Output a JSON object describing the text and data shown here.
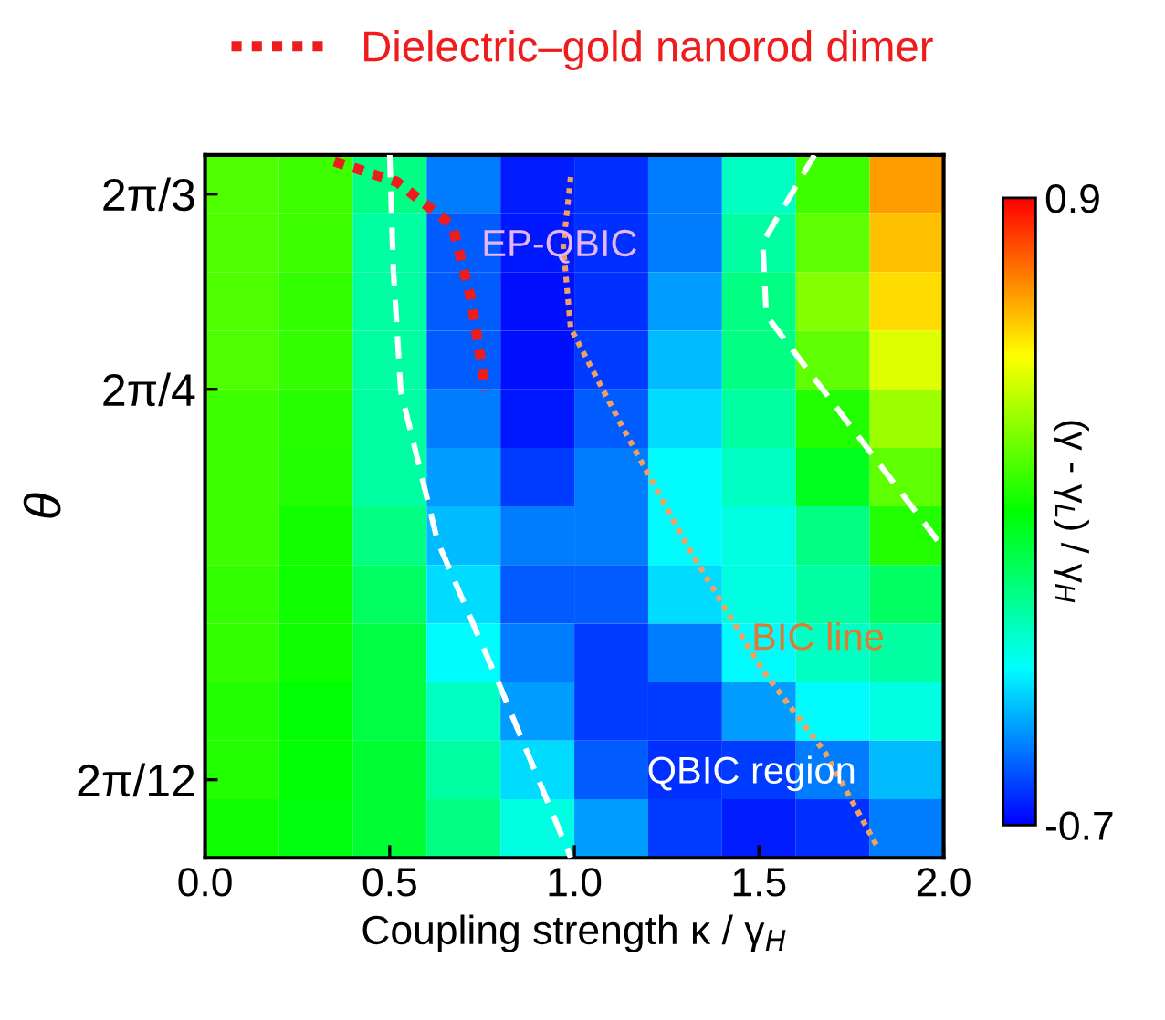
{
  "chart_data": {
    "type": "heatmap",
    "xlabel": "Coupling strength κ / γ$_{H}$",
    "ylabel": "θ",
    "clabel": "(γ - γ$_{L}$) / γ$_{H}$",
    "x": [
      0.1,
      0.3,
      0.5,
      0.7,
      0.9,
      1.1,
      1.3,
      1.5,
      1.7,
      1.9
    ],
    "cells": [
      [
        0.22,
        0.2,
        -0.1,
        -0.5,
        -0.65,
        -0.62,
        -0.5,
        -0.2,
        0.2,
        0.65
      ],
      [
        0.22,
        0.2,
        -0.15,
        -0.55,
        -0.66,
        -0.62,
        -0.5,
        -0.15,
        0.25,
        0.6
      ],
      [
        0.22,
        0.18,
        -0.15,
        -0.55,
        -0.67,
        -0.62,
        -0.45,
        -0.1,
        0.3,
        0.55
      ],
      [
        0.22,
        0.18,
        -0.15,
        -0.55,
        -0.67,
        -0.6,
        -0.4,
        -0.1,
        0.25,
        0.45
      ],
      [
        0.2,
        0.16,
        -0.15,
        -0.5,
        -0.66,
        -0.55,
        -0.35,
        -0.15,
        0.15,
        0.35
      ],
      [
        0.2,
        0.15,
        -0.15,
        -0.45,
        -0.6,
        -0.5,
        -0.3,
        -0.2,
        0.05,
        0.25
      ],
      [
        0.2,
        0.13,
        -0.1,
        -0.4,
        -0.5,
        -0.5,
        -0.3,
        -0.25,
        -0.1,
        0.15
      ],
      [
        0.18,
        0.12,
        -0.05,
        -0.35,
        -0.55,
        -0.55,
        -0.35,
        -0.25,
        -0.15,
        -0.05
      ],
      [
        0.18,
        0.12,
        0.0,
        -0.3,
        -0.5,
        -0.6,
        -0.5,
        -0.3,
        -0.2,
        -0.15
      ],
      [
        0.15,
        0.1,
        0.0,
        -0.2,
        -0.45,
        -0.6,
        -0.6,
        -0.45,
        -0.3,
        -0.25
      ],
      [
        0.15,
        0.1,
        0.02,
        -0.15,
        -0.35,
        -0.55,
        -0.62,
        -0.6,
        -0.5,
        -0.4
      ],
      [
        0.12,
        0.08,
        0.02,
        -0.1,
        -0.25,
        -0.45,
        -0.6,
        -0.65,
        -0.62,
        -0.5
      ]
    ],
    "clim": [
      -0.7,
      0.9
    ],
    "cticks": [
      -0.7,
      0.9
    ],
    "xlim": [
      0.0,
      2.0
    ],
    "xticks": [
      {
        "value": 0.0,
        "label": "0.0"
      },
      {
        "value": 0.5,
        "label": "0.5"
      },
      {
        "value": 1.0,
        "label": "1.0"
      },
      {
        "value": 1.5,
        "label": "1.5"
      },
      {
        "value": 2.0,
        "label": "2.0"
      }
    ],
    "ylim": [
      0.3142,
      2.1991
    ],
    "yticks": [
      {
        "value": 2.0944,
        "label": "2π/3"
      },
      {
        "value": 1.5708,
        "label": "2π/4"
      },
      {
        "value": 0.5236,
        "label": "2π/12"
      }
    ],
    "series": [
      {
        "type": "line",
        "name": "Dielectric–gold nanorod dimer",
        "color": "#ee1c1c",
        "line_style": "dotted",
        "x": [
          0.35,
          0.52,
          0.67,
          0.72,
          0.76
        ],
        "values": [
          2.182,
          2.127,
          2.01,
          1.814,
          1.567
        ]
      },
      {
        "type": "line",
        "color": "#f0a060",
        "line_style": "dotted",
        "x": [
          0.99,
          0.97,
          0.99,
          1.13,
          1.31,
          1.51,
          1.68,
          1.82
        ],
        "values": [
          2.14,
          1.954,
          1.735,
          1.47,
          1.144,
          0.817,
          0.595,
          0.345
        ]
      },
      {
        "type": "line",
        "color": "#ffffff",
        "line_style": "dashed",
        "x": [
          0.5,
          0.51,
          0.53,
          0.63,
          0.8,
          0.99
        ],
        "values": [
          2.199,
          1.889,
          1.567,
          1.162,
          0.771,
          0.315
        ]
      },
      {
        "type": "line",
        "color": "#ffffff",
        "line_style": "dashed",
        "x": [
          1.65,
          1.51,
          1.52,
          2.0
        ],
        "values": [
          2.199,
          1.964,
          1.769,
          1.144
        ]
      }
    ],
    "annotations": [
      "EP-QBIC",
      "BIC line",
      "QBIC region"
    ],
    "legend": "top",
    "marker": "none",
    "grid": false
  }
}
